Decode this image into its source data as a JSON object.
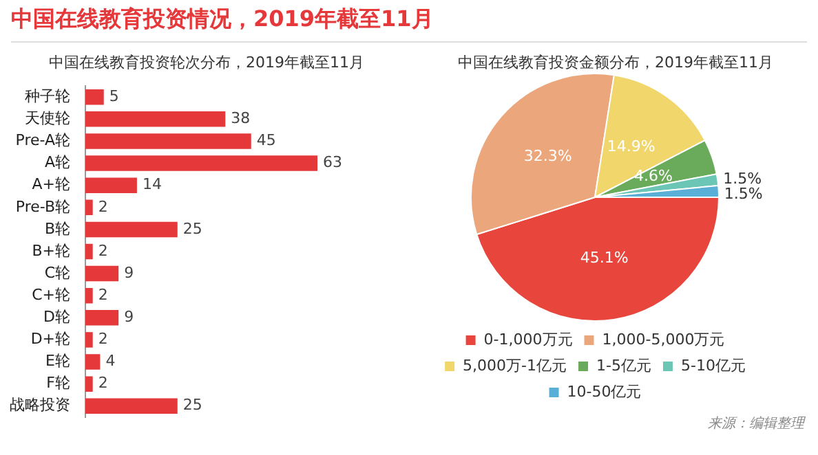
{
  "chart_data": [
    {
      "type": "bar",
      "title": "中国在线教育投资情况，2019年截至11月",
      "subtitle": "中国在线教育投资轮次分布，2019年截至11月",
      "orientation": "horizontal",
      "categories": [
        "种子轮",
        "天使轮",
        "Pre-A轮",
        "A轮",
        "A+轮",
        "Pre-B轮",
        "B轮",
        "B+轮",
        "C轮",
        "C+轮",
        "D轮",
        "D+轮",
        "E轮",
        "F轮",
        "战略投资"
      ],
      "values": [
        5,
        38,
        45,
        63,
        14,
        2,
        25,
        2,
        9,
        2,
        9,
        2,
        4,
        2,
        25
      ],
      "color": "#e5383b",
      "data_labels": true,
      "tick_labels": "y",
      "legend": false
    },
    {
      "type": "pie",
      "title": "中国在线教育投资金额分布，2019年截至11月",
      "categories": [
        "0-1,000万元",
        "1,000-5,000万元",
        "5,000万-1亿元",
        "1-5亿元",
        "5-10亿元",
        "10-50亿元"
      ],
      "values": [
        45.1,
        32.3,
        14.9,
        4.6,
        1.5,
        1.5
      ],
      "colors": [
        "#e8453c",
        "#eca67b",
        "#f1d76b",
        "#6aab5b",
        "#6cc6b5",
        "#5aafd7"
      ],
      "value_labels": [
        "45.1%",
        "32.3%",
        "14.9%",
        "4.6%",
        "1.5%",
        "1.5%"
      ],
      "legend": "bottom",
      "annotations": [
        "来源：编辑整理"
      ]
    }
  ]
}
